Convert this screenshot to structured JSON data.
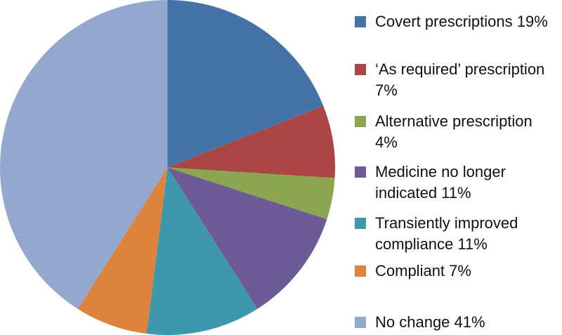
{
  "chart_data": {
    "type": "pie",
    "labels": [
      "Covert prescriptions",
      "‘As required’ prescription",
      "Alternative prescription",
      "Medicine no longer indicated",
      "Transiently improved compliance",
      "Compliant",
      "No change"
    ],
    "values": [
      19,
      7,
      4,
      11,
      11,
      7,
      41
    ],
    "colors": [
      "#4573a7",
      "#ab4644",
      "#8aa64e",
      "#6e5a96",
      "#3f97ac",
      "#dc833d",
      "#94a7ce"
    ],
    "title": "",
    "start_angle_deg": 0,
    "direction": "clockwise",
    "legend_position": "right",
    "background_color": "#ffffff"
  },
  "legend": {
    "items": [
      {
        "label": "Covert prescriptions 19%",
        "color": "#4573a7"
      },
      {
        "label": "‘As required’ prescription\n7%",
        "color": "#ab4644"
      },
      {
        "label": "Alternative prescription\n4%",
        "color": "#8aa64e"
      },
      {
        "label": "Medicine no longer\nindicated 11%",
        "color": "#6e5a96"
      },
      {
        "label": "Transiently improved\ncompliance 11%",
        "color": "#3f97ac"
      },
      {
        "label": "Compliant 7%",
        "color": "#dc833d"
      },
      {
        "label": "No change 41%",
        "color": "#94a7ce"
      }
    ]
  }
}
